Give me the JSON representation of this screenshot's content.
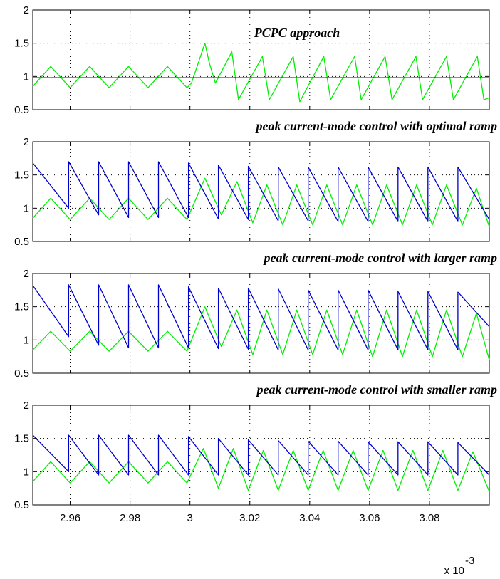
{
  "chart_data": [
    {
      "type": "line",
      "title": "PCPC approach",
      "xlim": [
        2.9475,
        3.1
      ],
      "ylim": [
        0.5,
        2
      ],
      "yticks": [
        "0.5",
        "1",
        "1.5",
        "2"
      ],
      "grid": true,
      "series": [
        {
          "color": "#00ee00",
          "x": [
            2.9475,
            2.9535,
            2.96,
            2.9665,
            2.973,
            2.9795,
            2.986,
            2.9925,
            2.999,
            3.0005,
            3.005,
            3.0065,
            3.0085,
            3.014,
            3.0162,
            3.0242,
            3.0265,
            3.0345,
            3.0367,
            3.0447,
            3.047,
            3.055,
            3.0572,
            3.0652,
            3.0675,
            3.0755,
            3.0777,
            3.0857,
            3.088,
            3.096,
            3.0982,
            3.1
          ],
          "y": [
            0.85,
            1.15,
            0.83,
            1.15,
            0.83,
            1.15,
            0.83,
            1.15,
            0.83,
            0.9,
            1.5,
            1.2,
            0.9,
            1.37,
            0.65,
            1.3,
            0.65,
            1.3,
            0.62,
            1.3,
            0.65,
            1.3,
            0.65,
            1.3,
            0.65,
            1.3,
            0.65,
            1.3,
            0.65,
            1.3,
            0.65,
            0.68
          ]
        },
        {
          "color": "#0000cc",
          "x": [
            2.9475,
            3.1
          ],
          "y": [
            0.98,
            0.98
          ]
        }
      ]
    },
    {
      "type": "line",
      "title": "peak current-mode control with optimal ramp",
      "xlim": [
        2.9475,
        3.1
      ],
      "ylim": [
        0.5,
        2
      ],
      "yticks": [
        "0.5",
        "1",
        "1.5",
        "2"
      ],
      "grid": true,
      "series": [
        {
          "color": "#00ee00",
          "x": [
            2.9475,
            2.9535,
            2.96,
            2.9665,
            2.973,
            2.9795,
            2.986,
            2.9925,
            2.999,
            3.005,
            3.0105,
            3.0157,
            3.021,
            3.0257,
            3.031,
            3.0357,
            3.041,
            3.0457,
            3.051,
            3.0557,
            3.061,
            3.0657,
            3.071,
            3.0757,
            3.081,
            3.0857,
            3.091,
            3.0957,
            3.1
          ],
          "y": [
            0.85,
            1.15,
            0.83,
            1.15,
            0.83,
            1.15,
            0.83,
            1.15,
            0.83,
            1.45,
            0.9,
            1.4,
            0.78,
            1.35,
            0.75,
            1.35,
            0.75,
            1.35,
            0.75,
            1.35,
            0.75,
            1.35,
            0.75,
            1.35,
            0.75,
            1.35,
            0.75,
            1.3,
            0.72
          ]
        },
        {
          "color": "#0000cc",
          "sawtooth": true,
          "starts": [
            2.9475,
            2.9595,
            2.9695,
            2.9795,
            2.9895,
            2.9995,
            3.0095,
            3.0195,
            3.0295,
            3.0395,
            3.0495,
            3.0595,
            3.0695,
            3.0795,
            3.0895
          ],
          "peaks": [
            1.68,
            1.7,
            1.7,
            1.7,
            1.7,
            1.68,
            1.65,
            1.63,
            1.62,
            1.62,
            1.62,
            1.62,
            1.62,
            1.62,
            1.62
          ],
          "ends": [
            1.0,
            0.9,
            0.86,
            0.86,
            0.86,
            0.84,
            0.83,
            0.81,
            0.81,
            0.8,
            0.8,
            0.8,
            0.8,
            0.8,
            0.83
          ]
        }
      ]
    },
    {
      "type": "line",
      "title": "peak current-mode control with larger ramp",
      "xlim": [
        2.9475,
        3.1
      ],
      "ylim": [
        0.5,
        2
      ],
      "yticks": [
        "0.5",
        "1",
        "1.5",
        "2"
      ],
      "grid": true,
      "series": [
        {
          "color": "#00ee00",
          "x": [
            2.9475,
            2.9535,
            2.96,
            2.9665,
            2.973,
            2.9795,
            2.986,
            2.9925,
            2.999,
            3.005,
            3.0105,
            3.0157,
            3.021,
            3.0257,
            3.031,
            3.0357,
            3.041,
            3.0457,
            3.051,
            3.0557,
            3.061,
            3.0657,
            3.071,
            3.0757,
            3.081,
            3.0857,
            3.091,
            3.0957,
            3.1
          ],
          "y": [
            0.85,
            1.13,
            0.83,
            1.13,
            0.83,
            1.13,
            0.83,
            1.13,
            0.83,
            1.5,
            0.9,
            1.45,
            0.78,
            1.45,
            0.78,
            1.45,
            0.78,
            1.45,
            0.78,
            1.45,
            0.75,
            1.45,
            0.75,
            1.45,
            0.75,
            1.45,
            0.75,
            1.4,
            0.7
          ]
        },
        {
          "color": "#0000cc",
          "sawtooth": true,
          "starts": [
            2.9475,
            2.9595,
            2.9695,
            2.9795,
            2.9895,
            2.9995,
            3.0095,
            3.0195,
            3.0295,
            3.0395,
            3.0495,
            3.0595,
            3.0695,
            3.0795,
            3.0895
          ],
          "peaks": [
            1.82,
            1.83,
            1.83,
            1.83,
            1.83,
            1.8,
            1.78,
            1.78,
            1.77,
            1.75,
            1.75,
            1.75,
            1.73,
            1.73,
            1.72
          ],
          "ends": [
            1.05,
            0.92,
            0.88,
            0.88,
            0.88,
            0.87,
            0.86,
            0.85,
            0.85,
            0.85,
            0.85,
            0.85,
            0.85,
            0.85,
            1.2
          ]
        }
      ]
    },
    {
      "type": "line",
      "title": "peak current-mode control with smaller ramp",
      "xlim": [
        2.9475,
        3.1
      ],
      "ylim": [
        0.5,
        2
      ],
      "yticks": [
        "0.5",
        "1",
        "1.5",
        "2"
      ],
      "xticks": [
        "2.96",
        "2.98",
        "3",
        "3.02",
        "3.04",
        "3.06",
        "3.08"
      ],
      "xtick_values": [
        2.96,
        2.98,
        3.0,
        3.02,
        3.04,
        3.06,
        3.08
      ],
      "x_exponent": "x 10",
      "x_exponent_power": "-3",
      "grid": true,
      "series": [
        {
          "color": "#00ee00",
          "x": [
            2.9475,
            2.9535,
            2.96,
            2.9665,
            2.973,
            2.9795,
            2.986,
            2.9925,
            2.999,
            3.0045,
            3.0095,
            3.0145,
            3.0195,
            3.0245,
            3.0295,
            3.0345,
            3.0395,
            3.0445,
            3.0495,
            3.0545,
            3.0595,
            3.0645,
            3.0695,
            3.0745,
            3.0795,
            3.0845,
            3.0895,
            3.0945,
            3.1
          ],
          "y": [
            0.85,
            1.15,
            0.83,
            1.15,
            0.83,
            1.15,
            0.83,
            1.15,
            0.83,
            1.35,
            0.75,
            1.35,
            0.72,
            1.32,
            0.72,
            1.32,
            0.72,
            1.32,
            0.72,
            1.32,
            0.72,
            1.32,
            0.72,
            1.32,
            0.72,
            1.32,
            0.72,
            1.3,
            0.7
          ]
        },
        {
          "color": "#0000cc",
          "sawtooth": true,
          "starts": [
            2.9475,
            2.9595,
            2.9695,
            2.9795,
            2.9895,
            2.9995,
            3.0095,
            3.0195,
            3.0295,
            3.0395,
            3.0495,
            3.0595,
            3.0695,
            3.0795,
            3.0895
          ],
          "peaks": [
            1.55,
            1.55,
            1.55,
            1.55,
            1.55,
            1.53,
            1.5,
            1.48,
            1.47,
            1.46,
            1.46,
            1.45,
            1.45,
            1.45,
            1.44
          ],
          "ends": [
            1.0,
            0.95,
            0.95,
            0.95,
            0.95,
            0.95,
            0.95,
            0.95,
            0.95,
            0.95,
            0.95,
            0.95,
            0.95,
            0.95,
            0.95
          ]
        }
      ]
    }
  ]
}
